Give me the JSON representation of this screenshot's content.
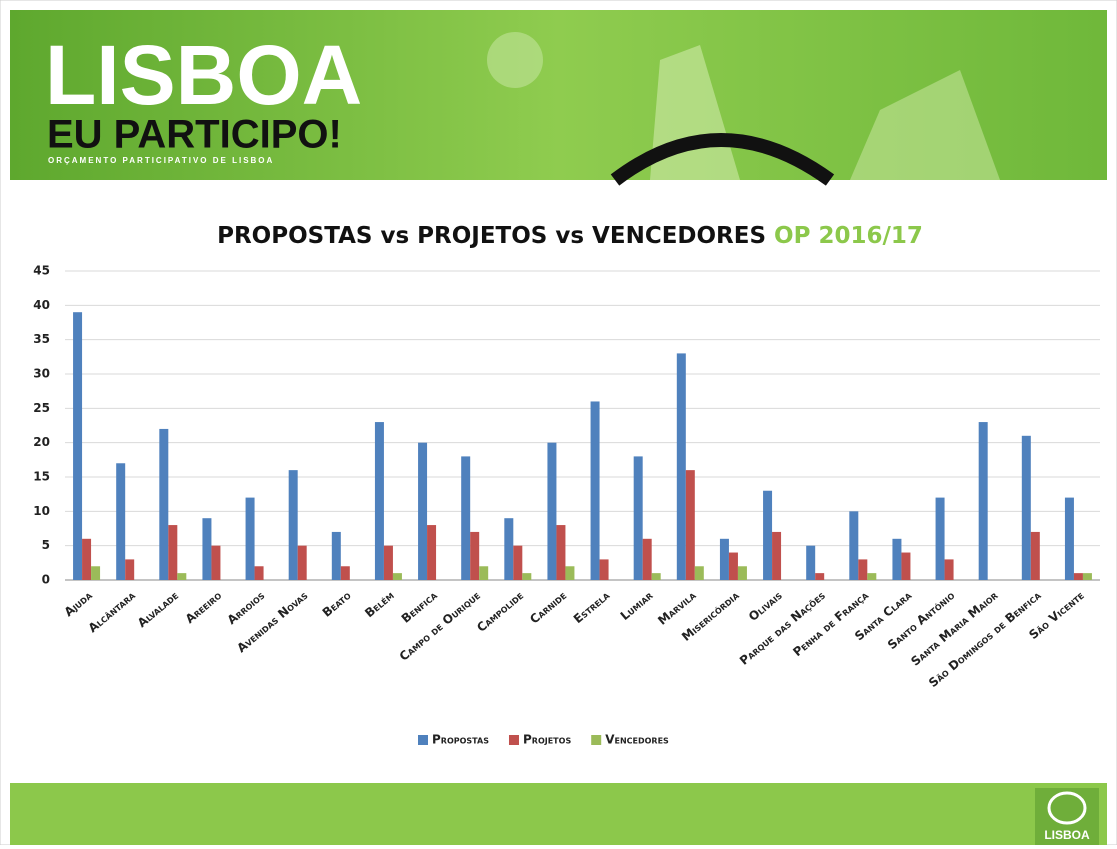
{
  "banner": {
    "title": "LISBOA",
    "subtitle": "EU PARTICIPO!",
    "tagline": "ORÇAMENTO PARTICIPATIVO DE LISBOA"
  },
  "footer": {
    "logo": "LISBOA"
  },
  "chart_data": {
    "type": "bar",
    "title": {
      "main": "PROPOSTAS vs PROJETOS vs VENCEDORES",
      "highlight": "OP 2016/17"
    },
    "categories": [
      "Ajuda",
      "Alcântara",
      "Alvalade",
      "Areeiro",
      "Arroios",
      "Avenidas Novas",
      "Beato",
      "Belém",
      "Benfica",
      "Campo de Ourique",
      "Campolide",
      "Carnide",
      "Estrela",
      "Lumiar",
      "Marvila",
      "Misericórdia",
      "Olivais",
      "Parque das Nações",
      "Penha de França",
      "Santa Clara",
      "Santo António",
      "Santa Maria Maior",
      "São Domingos de Benfica",
      "São Vicente"
    ],
    "series": [
      {
        "name": "Propostas",
        "color": "#4f81bd",
        "values": [
          39,
          17,
          22,
          9,
          12,
          16,
          7,
          23,
          20,
          18,
          9,
          20,
          26,
          18,
          33,
          6,
          13,
          5,
          10,
          6,
          12,
          23,
          21,
          12
        ]
      },
      {
        "name": "Projetos",
        "color": "#c0504d",
        "values": [
          6,
          3,
          8,
          5,
          2,
          5,
          2,
          5,
          8,
          7,
          5,
          8,
          3,
          6,
          16,
          4,
          7,
          1,
          3,
          4,
          3,
          0,
          7,
          1
        ]
      },
      {
        "name": "Vencedores",
        "color": "#9bbb59",
        "values": [
          2,
          0,
          1,
          0,
          0,
          0,
          0,
          1,
          0,
          2,
          1,
          2,
          0,
          1,
          2,
          2,
          0,
          0,
          1,
          0,
          0,
          0,
          0,
          1
        ]
      }
    ],
    "ylim": [
      0,
      45
    ],
    "yticks": [
      0,
      5,
      10,
      15,
      20,
      25,
      30,
      35,
      40,
      45
    ],
    "grid": true,
    "legend": "bottom"
  }
}
